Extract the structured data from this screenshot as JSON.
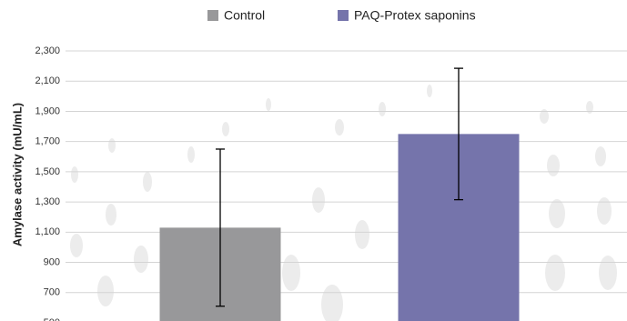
{
  "chart_data": {
    "type": "bar",
    "y_label": "Amylase activity (mU/mL)",
    "series": [
      {
        "name": "Control",
        "color": "#98989a",
        "values": [
          1130
        ],
        "errors": [
          520
        ]
      },
      {
        "name": "PAQ-Protex saponins",
        "color": "#7574ab",
        "values": [
          1750
        ],
        "errors": [
          435
        ]
      }
    ],
    "ylim": [
      500,
      2300
    ],
    "yticks": [
      {
        "value": 500,
        "label": "500"
      },
      {
        "value": 700,
        "label": "700"
      },
      {
        "value": 900,
        "label": "900"
      },
      {
        "value": 1100,
        "label": "1,100"
      },
      {
        "value": 1300,
        "label": "1,300"
      },
      {
        "value": 1500,
        "label": "1,500"
      },
      {
        "value": 1700,
        "label": "1,700"
      },
      {
        "value": 1900,
        "label": "1,900"
      },
      {
        "value": 2100,
        "label": "2,100"
      },
      {
        "value": 2300,
        "label": "2,300"
      }
    ],
    "grid": true
  }
}
